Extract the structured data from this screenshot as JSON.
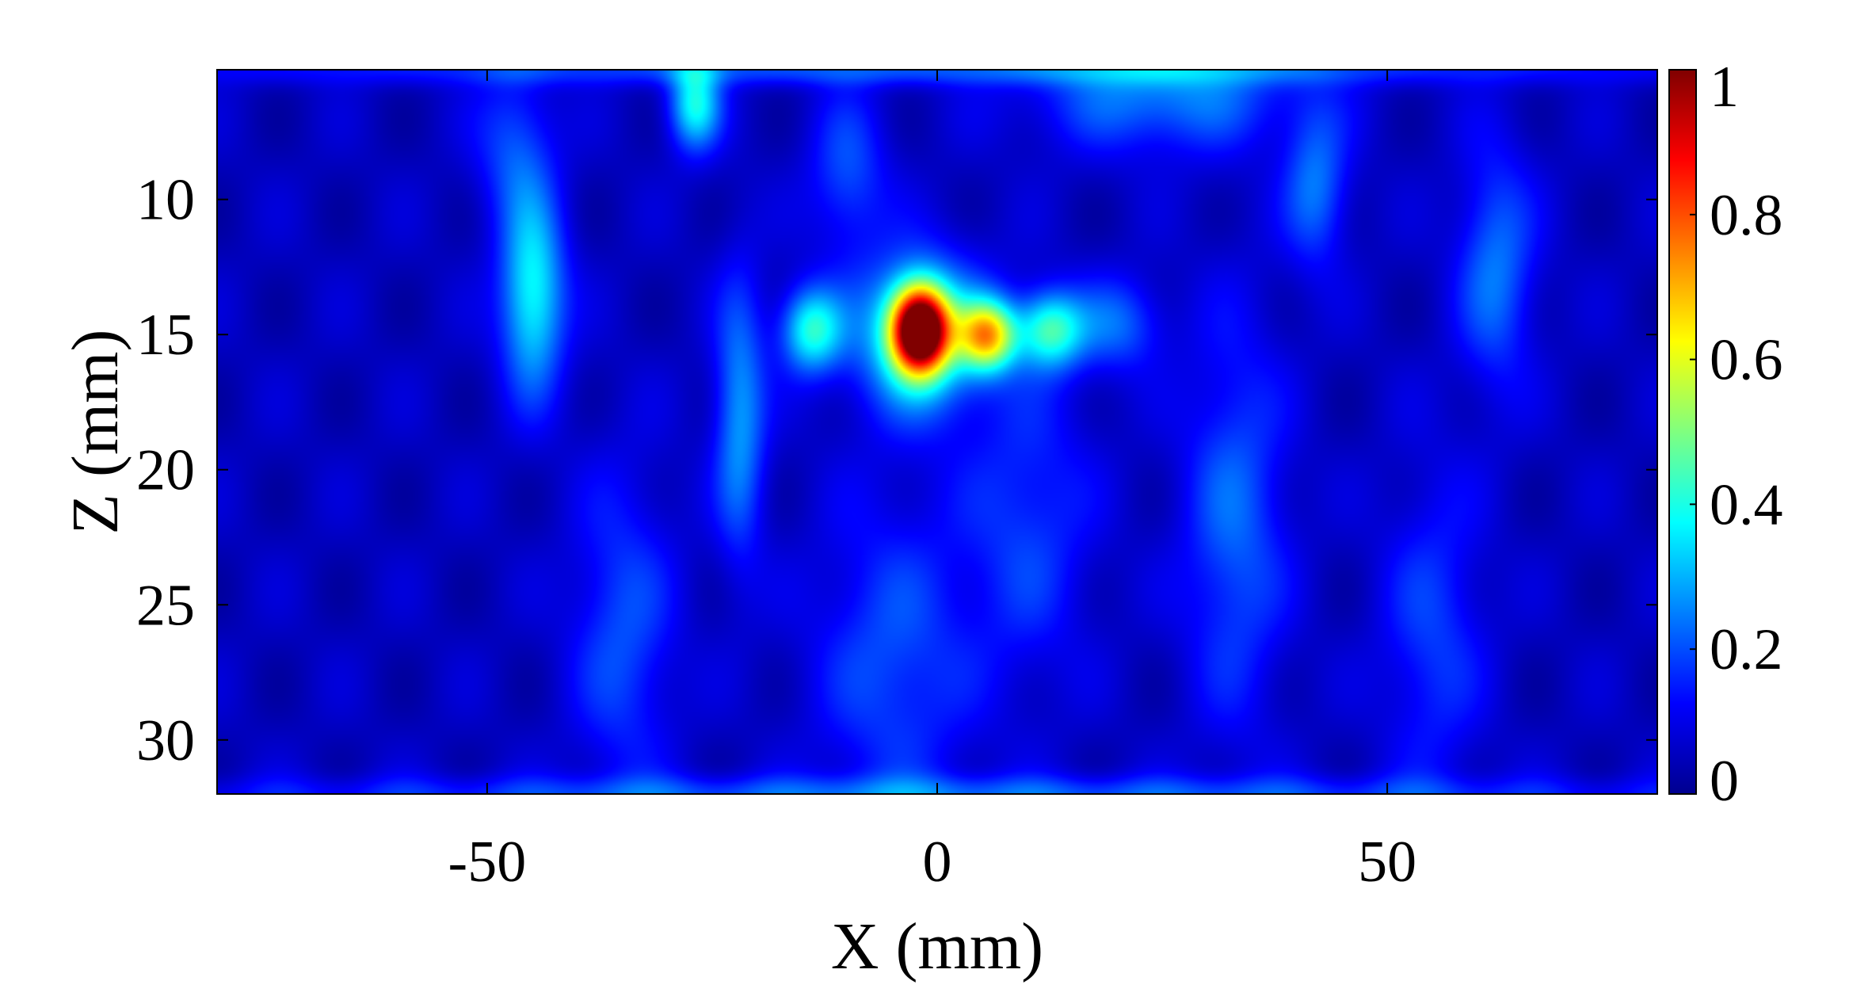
{
  "chart_data": {
    "type": "heatmap",
    "title": "",
    "xlabel": "X (mm)",
    "ylabel": "Z (mm)",
    "xlim": [
      -80,
      80
    ],
    "ylim": [
      5.2,
      32
    ],
    "y_reversed": true,
    "x_ticks": [
      -50,
      0,
      50
    ],
    "x_tick_labels": [
      "-50",
      "0",
      "50"
    ],
    "y_ticks": [
      10,
      15,
      20,
      25,
      30
    ],
    "y_tick_labels": [
      "10",
      "15",
      "20",
      "25",
      "30"
    ],
    "colorbar": {
      "colormap": "jet",
      "range": [
        0,
        1
      ],
      "ticks": [
        0,
        0.2,
        0.4,
        0.6,
        0.8,
        1
      ],
      "tick_labels": [
        "0",
        "0.2",
        "0.4",
        "0.6",
        "0.8",
        "1"
      ]
    },
    "grid": false,
    "background_level": 0.06,
    "blobs": [
      {
        "x": -2,
        "z": 14.8,
        "sx": 2.2,
        "sz": 1.1,
        "amp": 0.95
      },
      {
        "x": -2,
        "z": 15.0,
        "sx": 5.0,
        "sz": 2.0,
        "amp": 0.35
      },
      {
        "x": 5.5,
        "z": 15.0,
        "sx": 2.2,
        "sz": 0.9,
        "amp": 0.55
      },
      {
        "x": 12.5,
        "z": 14.8,
        "sx": 2.6,
        "sz": 1.0,
        "amp": 0.36
      },
      {
        "x": -14,
        "z": 14.8,
        "sx": 2.4,
        "sz": 1.1,
        "amp": 0.34
      },
      {
        "x": 20,
        "z": 14.6,
        "sx": 3.5,
        "sz": 1.2,
        "amp": 0.16
      },
      {
        "x": -45,
        "z": 13.5,
        "sx": 2.5,
        "sz": 2.5,
        "amp": 0.33
      },
      {
        "x": -27,
        "z": 6.4,
        "sx": 2.0,
        "sz": 1.2,
        "amp": 0.33
      },
      {
        "x": -22,
        "z": 18.0,
        "sx": 2.0,
        "sz": 3.5,
        "amp": 0.22
      },
      {
        "x": 25,
        "z": 6.0,
        "sx": 10.0,
        "sz": 1.5,
        "amp": 0.2
      },
      {
        "x": 33,
        "z": 22.0,
        "sx": 4.0,
        "sz": 5.0,
        "amp": 0.16
      },
      {
        "x": 42,
        "z": 9.5,
        "sx": 2.5,
        "sz": 2.0,
        "amp": 0.18
      },
      {
        "x": 62,
        "z": 12.5,
        "sx": 3.0,
        "sz": 3.0,
        "amp": 0.18
      },
      {
        "x": -47,
        "z": 8.0,
        "sx": 3.0,
        "sz": 2.0,
        "amp": 0.14
      },
      {
        "x": -10,
        "z": 9.0,
        "sx": 3.0,
        "sz": 2.0,
        "amp": 0.14
      },
      {
        "x": -5,
        "z": 27.0,
        "sx": 6.0,
        "sz": 4.0,
        "amp": 0.14
      },
      {
        "x": -35,
        "z": 26.0,
        "sx": 4.0,
        "sz": 4.0,
        "amp": 0.14
      },
      {
        "x": 55,
        "z": 26.0,
        "sx": 4.0,
        "sz": 4.0,
        "amp": 0.12
      },
      {
        "x": 10,
        "z": 22.0,
        "sx": 5.0,
        "sz": 4.0,
        "amp": 0.12
      },
      {
        "x": 0,
        "z": 32.0,
        "sx": 60.0,
        "sz": 0.5,
        "amp": 0.16
      },
      {
        "x": 0,
        "z": 5.2,
        "sx": 60.0,
        "sz": 0.4,
        "amp": 0.14
      }
    ]
  }
}
